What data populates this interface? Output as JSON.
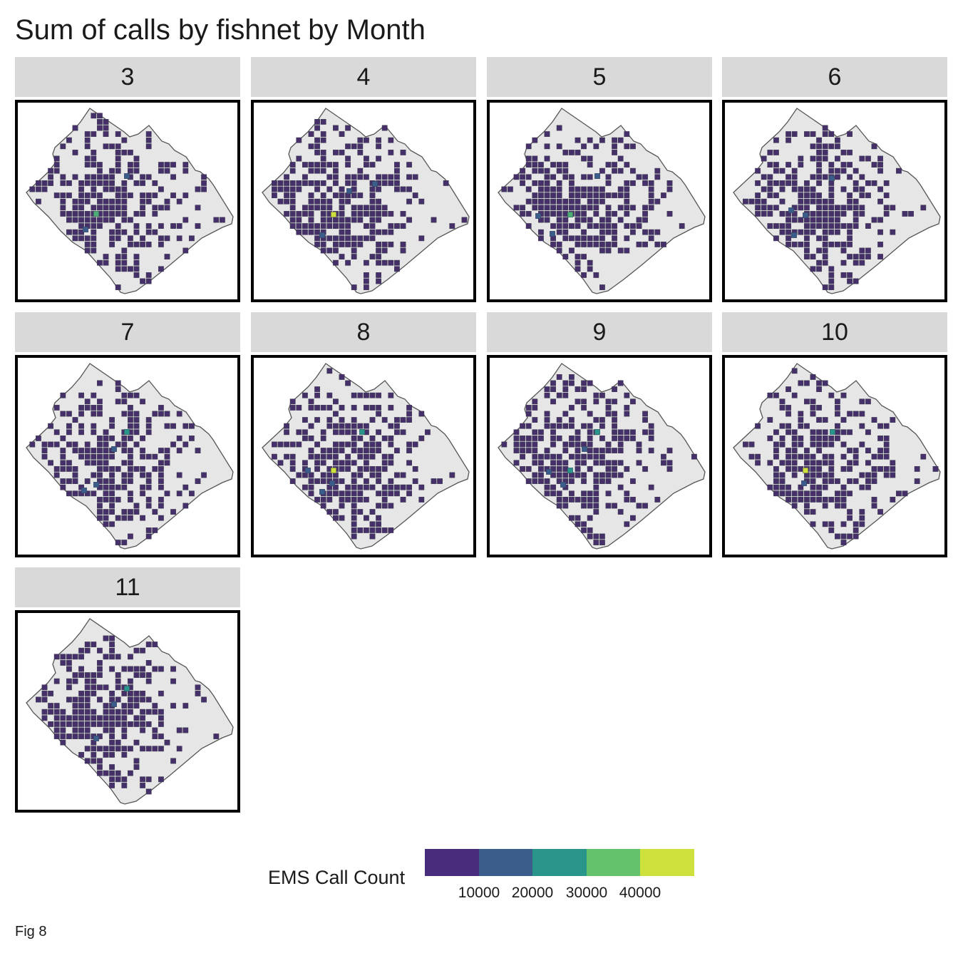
{
  "title": "Sum of calls by fishnet by Month",
  "caption": "Fig 8",
  "panels": [
    {
      "month": "3",
      "seed": 3,
      "hot": [
        [
          "g",
          135,
          300
        ],
        [
          "m",
          178,
          247
        ],
        [
          "m",
          120,
          322
        ]
      ]
    },
    {
      "month": "4",
      "seed": 4,
      "hot": [
        [
          "y",
          468,
          301
        ],
        [
          "m",
          452,
          330
        ],
        [
          "m",
          526,
          258
        ],
        [
          "m",
          490,
          268
        ]
      ]
    },
    {
      "month": "5",
      "seed": 5,
      "hot": [
        [
          "g",
          800,
          301
        ],
        [
          "m",
          838,
          247
        ],
        [
          "m",
          775,
          328
        ],
        [
          "m",
          755,
          303
        ]
      ]
    },
    {
      "month": "6",
      "seed": 6,
      "hot": [
        [
          "m",
          1167,
          250
        ],
        [
          "m",
          1130,
          302
        ],
        [
          "m",
          1110,
          295
        ],
        [
          "m",
          1114,
          330
        ]
      ]
    },
    {
      "month": "7",
      "seed": 7,
      "hot": [
        [
          "t",
          178,
          606
        ],
        [
          "m",
          160,
          630
        ],
        [
          "m",
          135,
          680
        ],
        [
          "m",
          118,
          688
        ]
      ]
    },
    {
      "month": "8",
      "seed": 8,
      "hot": [
        [
          "y",
          468,
          660
        ],
        [
          "t",
          508,
          606
        ],
        [
          "m",
          452,
          690
        ],
        [
          "m",
          466,
          678
        ],
        [
          "m",
          432,
          660
        ]
      ]
    },
    {
      "month": "9",
      "seed": 9,
      "hot": [
        [
          "t",
          838,
          606
        ],
        [
          "t",
          800,
          660
        ],
        [
          "m",
          790,
          680
        ],
        [
          "m",
          770,
          662
        ],
        [
          "m",
          820,
          630
        ]
      ]
    },
    {
      "month": "10",
      "seed": 10,
      "hot": [
        [
          "y",
          1130,
          660
        ],
        [
          "t",
          1168,
          606
        ],
        [
          "m",
          1128,
          678
        ]
      ]
    },
    {
      "month": "11",
      "seed": 11,
      "hot": [
        [
          "t",
          178,
          966
        ],
        [
          "m",
          160,
          988
        ],
        [
          "m",
          135,
          1036
        ]
      ]
    }
  ],
  "legend": {
    "title": "EMS Call Count",
    "colors": [
      "#472d7b",
      "#3b5d8b",
      "#2a968b",
      "#64c16c",
      "#cde03c"
    ],
    "ticks": [
      "10000",
      "20000",
      "30000",
      "40000"
    ]
  },
  "colors": {
    "land": "#e6e6e6",
    "outline": "#555555",
    "cell": "#46306a",
    "cell_edge": "#3a3a4a",
    "m": "#3b5d8b",
    "t": "#2a968b",
    "g": "#4cae76",
    "y": "#cde03c"
  }
}
